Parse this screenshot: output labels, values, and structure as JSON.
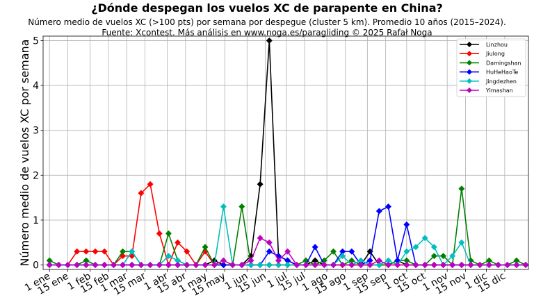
{
  "chart_data": {
    "type": "line",
    "title": "¿Dónde despegan los vuelos XC de parapente en China?",
    "subtitle_lines": [
      "Número medio de vuelos XC (>100 pts) por semana por despegue (cluster 5 km). Promedio 10 años (2015–2024).",
      "Fuente: Xcontest. Más análisis en www.noga.es/paragliding © 2025 Rafał Noga"
    ],
    "ylabel": "Número medio de vuelos XC por semana",
    "xlabel": "",
    "x_weeks": [
      1,
      2,
      3,
      4,
      5,
      6,
      7,
      8,
      9,
      10,
      11,
      12,
      13,
      14,
      15,
      16,
      17,
      18,
      19,
      20,
      21,
      22,
      23,
      24,
      25,
      26,
      27,
      28,
      29,
      30,
      31,
      32,
      33,
      34,
      35,
      36,
      37,
      38,
      39,
      40,
      41,
      42,
      43,
      44,
      45,
      46,
      47,
      48,
      49,
      50,
      51,
      52,
      53
    ],
    "x_ticks": [
      {
        "label": "1 ene",
        "week": 1
      },
      {
        "label": "15 ene",
        "week": 3
      },
      {
        "label": "1 feb",
        "week": 5.43
      },
      {
        "label": "15 feb",
        "week": 7.43
      },
      {
        "label": "1 mar",
        "week": 9.43
      },
      {
        "label": "15 mar",
        "week": 11.43
      },
      {
        "label": "1 abr",
        "week": 13.86
      },
      {
        "label": "15 abr",
        "week": 15.86
      },
      {
        "label": "1 may",
        "week": 18.14
      },
      {
        "label": "15 may",
        "week": 20.14
      },
      {
        "label": "1 jun",
        "week": 22.57
      },
      {
        "label": "15 jun",
        "week": 24.57
      },
      {
        "label": "1 jul",
        "week": 26.86
      },
      {
        "label": "15 jul",
        "week": 28.86
      },
      {
        "label": "1 ago",
        "week": 31.29
      },
      {
        "label": "15 ago",
        "week": 33.29
      },
      {
        "label": "1 sep",
        "week": 35.71
      },
      {
        "label": "15 sep",
        "week": 37.71
      },
      {
        "label": "1 oct",
        "week": 40
      },
      {
        "label": "15 oct",
        "week": 42
      },
      {
        "label": "1 nov",
        "week": 44.43
      },
      {
        "label": "15 nov",
        "week": 46.43
      },
      {
        "label": "1 dic",
        "week": 48.71
      },
      {
        "label": "15 dic",
        "week": 50.71
      }
    ],
    "y_ticks": [
      0,
      1,
      2,
      3,
      4,
      5
    ],
    "xlim": [
      0.3,
      53.3
    ],
    "ylim": [
      -0.1,
      5.1
    ],
    "grid": true,
    "legend_position": "top-right",
    "series": [
      {
        "name": "Linzhou",
        "color": "#000000",
        "values": [
          0,
          0,
          0,
          0,
          0,
          0,
          0,
          0,
          0,
          0,
          0,
          0,
          0,
          0,
          0,
          0,
          0,
          0,
          0.1,
          0,
          0,
          0,
          0.2,
          1.8,
          5.0,
          0.2,
          0.1,
          0,
          0,
          0.1,
          0,
          0,
          0,
          0,
          0,
          0.3,
          0,
          0,
          0.1,
          0,
          0,
          0,
          0,
          0,
          0,
          0,
          0,
          0,
          0,
          0,
          0,
          0,
          0
        ]
      },
      {
        "name": "Jiulong",
        "color": "#ff0000",
        "values": [
          0,
          0,
          0,
          0.3,
          0.3,
          0.3,
          0.3,
          0,
          0.2,
          0.2,
          1.6,
          1.8,
          0.7,
          0,
          0.5,
          0.3,
          0,
          0.3,
          0,
          0,
          0,
          0,
          0,
          0,
          0,
          0,
          0,
          0,
          0,
          0,
          0,
          0,
          0,
          0,
          0,
          0,
          0,
          0,
          0,
          0,
          0,
          0,
          0,
          0,
          0,
          0,
          0,
          0,
          0,
          0,
          0,
          0,
          0
        ]
      },
      {
        "name": "Damingshan",
        "color": "#008000",
        "values": [
          0.1,
          0,
          0,
          0,
          0.1,
          0,
          0,
          0,
          0.3,
          0.3,
          0,
          0,
          0,
          0.7,
          0.1,
          0,
          0,
          0.4,
          0,
          0,
          0,
          1.3,
          0,
          0,
          0,
          0,
          0,
          0,
          0.1,
          0,
          0.1,
          0.3,
          0,
          0.1,
          0,
          0,
          0,
          0,
          0.1,
          0.1,
          0,
          0,
          0.2,
          0.2,
          0,
          1.7,
          0.1,
          0,
          0.1,
          0,
          0,
          0.1,
          0
        ]
      },
      {
        "name": "HuHeHaoTe",
        "color": "#0000ff",
        "values": [
          0,
          0,
          0,
          0,
          0,
          0,
          0,
          0,
          0,
          0,
          0,
          0,
          0,
          0,
          0,
          0,
          0,
          0,
          0,
          0,
          0,
          0,
          0,
          0,
          0.3,
          0.2,
          0.1,
          0,
          0,
          0.4,
          0,
          0,
          0.3,
          0.3,
          0,
          0.1,
          1.2,
          1.3,
          0.1,
          0.9,
          0,
          0,
          0,
          0,
          0,
          0,
          0,
          0,
          0,
          0,
          0,
          0,
          0
        ]
      },
      {
        "name": "Jingdezhen",
        "color": "#00bfbf",
        "values": [
          0,
          0,
          0,
          0,
          0,
          0,
          0,
          0,
          0,
          0.3,
          0,
          0,
          0,
          0.2,
          0.1,
          0,
          0,
          0,
          0,
          1.3,
          0,
          0,
          0,
          0,
          0,
          0,
          0,
          0,
          0,
          0,
          0,
          0,
          0.2,
          0,
          0.1,
          0,
          0,
          0.1,
          0,
          0.3,
          0.4,
          0.6,
          0.4,
          0,
          0.2,
          0.5,
          0,
          0,
          0,
          0,
          0,
          0,
          0
        ]
      },
      {
        "name": "Yimashan",
        "color": "#bf00bf",
        "values": [
          0,
          0,
          0,
          0,
          0,
          0,
          0,
          0,
          0,
          0,
          0,
          0,
          0,
          0,
          0,
          0,
          0,
          0,
          0,
          0.1,
          0,
          0,
          0.1,
          0.6,
          0.5,
          0.1,
          0.3,
          0,
          0,
          0,
          0,
          0,
          0,
          0,
          0,
          0,
          0.1,
          0,
          0,
          0,
          0,
          0,
          0,
          0,
          0,
          0,
          0,
          0,
          0,
          0,
          0,
          0,
          0
        ]
      }
    ]
  }
}
